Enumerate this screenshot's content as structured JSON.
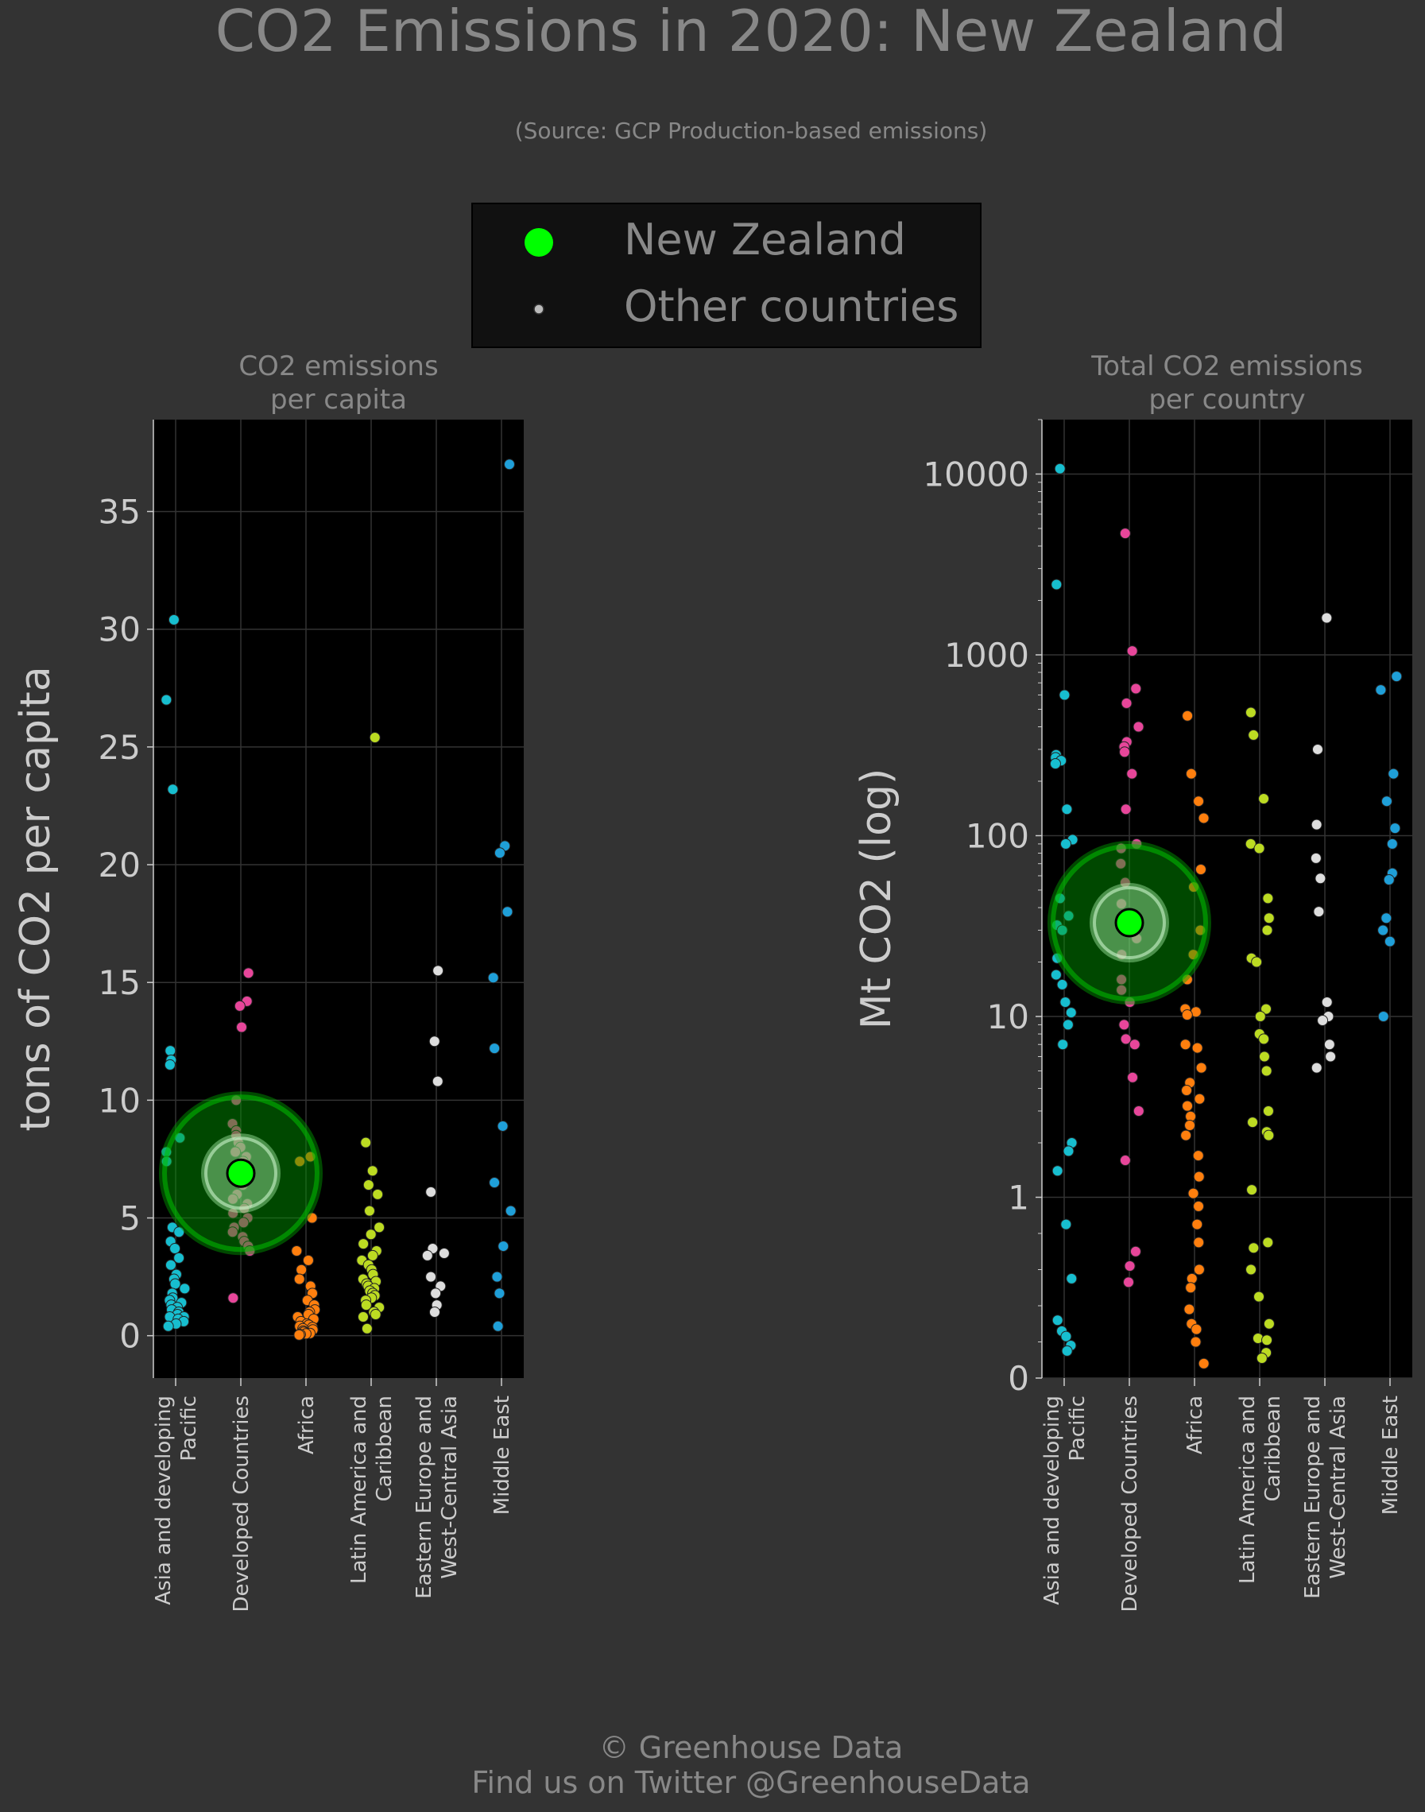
{
  "title": "CO2 Emissions in 2020: New Zealand",
  "subtitle": "(Source: GCP Production-based emissions)",
  "legend": {
    "highlight_label": "New Zealand",
    "other_label": "Other countries",
    "highlight_color": "#00ff00",
    "other_color": "#bbbbbb"
  },
  "footer": {
    "credit": "© Greenhouse Data",
    "twitter": "Find us on Twitter @GreenhouseData"
  },
  "colors": {
    "background": "#333333",
    "panel": "#000000",
    "grid": "#333333",
    "legend_bg": "#111111",
    "text": "#888888",
    "tick_text": "#cccccc"
  },
  "chart_data": [
    {
      "type": "scatter",
      "panel_title": [
        "CO2 emissions",
        "per capita"
      ],
      "ylabel": "tons of CO2 per capita",
      "ylim": [
        -1.8,
        38.9
      ],
      "yscale": "linear",
      "yticks": [
        0,
        5,
        10,
        15,
        20,
        25,
        30,
        35
      ],
      "ytick_labels": [
        "0",
        "5",
        "10",
        "15",
        "20",
        "25",
        "30",
        "35"
      ],
      "grid": true,
      "categories": [
        [
          "Asia and developing",
          "Pacific"
        ],
        [
          "Developed Countries"
        ],
        [
          "Africa"
        ],
        [
          "Latin America and",
          "Caribbean"
        ],
        [
          "Eastern Europe and",
          "West-Central Asia"
        ],
        [
          "Middle East"
        ]
      ],
      "category_colors": [
        "#17becf",
        "#e7469a",
        "#ff7f0e",
        "#bcdb22",
        "#dddddd",
        "#1f9fd8"
      ],
      "highlight": {
        "category": 1,
        "value": 6.9
      },
      "series": [
        {
          "category": 0,
          "values": [
            30.4,
            27.0,
            23.2,
            12.1,
            11.7,
            11.5,
            8.4,
            7.8,
            7.4,
            4.6,
            4.4,
            4.0,
            3.7,
            3.3,
            3.0,
            2.6,
            2.4,
            2.2,
            2.0,
            1.8,
            1.6,
            1.5,
            1.4,
            1.3,
            1.2,
            1.1,
            1.0,
            0.9,
            0.8,
            0.8,
            0.7,
            0.6,
            0.5,
            0.4
          ]
        },
        {
          "category": 1,
          "values": [
            15.4,
            14.2,
            14.0,
            13.1,
            10.0,
            9.0,
            8.7,
            8.5,
            8.2,
            8.0,
            7.8,
            7.6,
            7.4,
            7.2,
            7.0,
            6.8,
            6.6,
            6.4,
            6.0,
            5.8,
            5.6,
            5.4,
            5.2,
            5.0,
            4.8,
            4.6,
            4.4,
            4.2,
            4.0,
            3.8,
            3.6,
            1.6
          ]
        },
        {
          "category": 2,
          "values": [
            7.6,
            7.4,
            5.0,
            3.6,
            3.2,
            2.8,
            2.4,
            2.1,
            1.8,
            1.5,
            1.3,
            1.1,
            1.0,
            0.9,
            0.8,
            0.7,
            0.6,
            0.5,
            0.45,
            0.4,
            0.35,
            0.3,
            0.25,
            0.2,
            0.15,
            0.1,
            0.08,
            0.05,
            0.03
          ]
        },
        {
          "category": 3,
          "values": [
            25.4,
            8.2,
            7.0,
            6.4,
            6.0,
            5.3,
            4.6,
            4.3,
            3.9,
            3.6,
            3.4,
            3.2,
            3.0,
            2.8,
            2.6,
            2.4,
            2.3,
            2.2,
            2.1,
            2.0,
            1.9,
            1.8,
            1.7,
            1.6,
            1.5,
            1.3,
            1.2,
            1.0,
            0.9,
            0.8,
            0.3
          ]
        },
        {
          "category": 4,
          "values": [
            15.5,
            12.5,
            10.8,
            6.1,
            3.7,
            3.5,
            3.4,
            2.5,
            2.1,
            1.8,
            1.3,
            1.0
          ]
        },
        {
          "category": 5,
          "values": [
            37.0,
            20.8,
            20.5,
            18.0,
            15.2,
            12.2,
            8.9,
            6.5,
            5.3,
            3.8,
            2.5,
            1.8,
            0.4
          ]
        }
      ]
    },
    {
      "type": "scatter",
      "panel_title": [
        "Total CO2 emissions",
        "per country"
      ],
      "ylabel": "Mt CO2 (log)",
      "ylim": [
        0,
        20000
      ],
      "yscale": "symlog",
      "yticks": [
        0,
        1,
        10,
        100,
        1000,
        10000
      ],
      "ytick_labels": [
        "0",
        "1",
        "10",
        "100",
        "1000",
        "10000"
      ],
      "grid": true,
      "categories": [
        [
          "Asia and developing",
          "Pacific"
        ],
        [
          "Developed Countries"
        ],
        [
          "Africa"
        ],
        [
          "Latin America and",
          "Caribbean"
        ],
        [
          "Eastern Europe and",
          "West-Central Asia"
        ],
        [
          "Middle East"
        ]
      ],
      "category_colors": [
        "#17becf",
        "#e7469a",
        "#ff7f0e",
        "#bcdb22",
        "#dddddd",
        "#1f9fd8"
      ],
      "highlight": {
        "category": 1,
        "value": 33
      },
      "series": [
        {
          "category": 0,
          "values": [
            10700,
            2450,
            600,
            280,
            270,
            260,
            250,
            140,
            95,
            90,
            45,
            36,
            32,
            30,
            21,
            17,
            15,
            12,
            10.5,
            9,
            7,
            2.0,
            1.8,
            1.4,
            0.85,
            0.55,
            0.32,
            0.26,
            0.23,
            0.18,
            0.15
          ]
        },
        {
          "category": 1,
          "values": [
            4700,
            1050,
            650,
            540,
            400,
            330,
            310,
            290,
            220,
            140,
            90,
            85,
            70,
            55,
            42,
            33,
            27,
            22,
            16,
            14,
            12,
            9,
            7.5,
            7,
            4.6,
            3.0,
            1.6,
            0.7,
            0.62,
            0.53
          ]
        },
        {
          "category": 2,
          "values": [
            460,
            220,
            155,
            125,
            65,
            52,
            30,
            22,
            16,
            11,
            10.6,
            10.2,
            7,
            6.7,
            5.2,
            4.3,
            3.9,
            3.5,
            3.2,
            2.8,
            2.5,
            2.2,
            1.7,
            1.3,
            1.05,
            0.95,
            0.85,
            0.75,
            0.6,
            0.55,
            0.5,
            0.38,
            0.3,
            0.27,
            0.2,
            0.08
          ]
        },
        {
          "category": 3,
          "values": [
            480,
            360,
            160,
            90,
            85,
            45,
            35,
            30,
            21,
            20,
            11,
            10,
            8,
            7.5,
            6,
            5,
            3,
            2.6,
            2.3,
            2.2,
            1.1,
            0.75,
            0.72,
            0.6,
            0.45,
            0.3,
            0.22,
            0.21,
            0.14,
            0.11
          ]
        },
        {
          "category": 4,
          "values": [
            1600,
            300,
            115,
            75,
            58,
            38,
            12,
            10,
            9.5,
            7,
            6,
            5.2
          ]
        },
        {
          "category": 5,
          "values": [
            760,
            640,
            220,
            155,
            110,
            90,
            62,
            57,
            35,
            30,
            26,
            10
          ]
        }
      ]
    }
  ]
}
